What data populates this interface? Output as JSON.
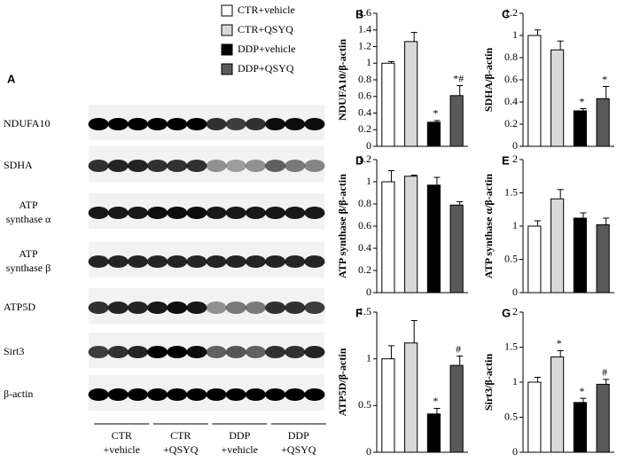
{
  "legend": {
    "series": [
      {
        "name": "CTR+vehicle",
        "color": "#ffffff"
      },
      {
        "name": "CTR+QSYQ",
        "color": "#d9d9d9"
      },
      {
        "name": "DDP+vehicle",
        "color": "#000000"
      },
      {
        "name": "DDP+QSYQ",
        "color": "#595959"
      }
    ]
  },
  "blot": {
    "label": "A",
    "rows": [
      [
        "NDUFA10"
      ],
      [
        "SDHA"
      ],
      [
        "ATP",
        "synthase α"
      ],
      [
        "ATP",
        "synthase β"
      ],
      [
        "ATP5D"
      ],
      [
        "Sirt3"
      ],
      [
        "β-actin"
      ]
    ],
    "groups": [
      [
        "CTR",
        "+vehicle"
      ],
      [
        "CTR",
        "+QSYQ"
      ],
      [
        "DDP",
        "+vehicle"
      ],
      [
        "DDP",
        "+QSYQ"
      ]
    ]
  },
  "chart_data": [
    {
      "type": "bar",
      "label": "B",
      "ylabel": "NDUFA10/β-actin",
      "values": [
        1.0,
        1.26,
        0.29,
        0.61
      ],
      "errors": [
        0.02,
        0.11,
        0.02,
        0.12
      ],
      "annotations": [
        null,
        null,
        "*",
        "*#"
      ],
      "ylim": [
        0,
        1.6
      ],
      "yticks": [
        0,
        0.2,
        0.4,
        0.6,
        0.8,
        1,
        1.2,
        1.4,
        1.6
      ]
    },
    {
      "type": "bar",
      "label": "C",
      "ylabel": "SDHA/β-actin",
      "values": [
        1.0,
        0.87,
        0.32,
        0.43
      ],
      "errors": [
        0.05,
        0.08,
        0.02,
        0.11
      ],
      "annotations": [
        null,
        null,
        "*",
        "*"
      ],
      "ylim": [
        0,
        1.2
      ],
      "yticks": [
        0,
        0.2,
        0.4,
        0.6,
        0.8,
        1,
        1.2
      ]
    },
    {
      "type": "bar",
      "label": "D",
      "ylabel": "ATP synthase β/β-actin",
      "values": [
        1.0,
        1.05,
        0.97,
        0.79
      ],
      "errors": [
        0.1,
        0.01,
        0.07,
        0.03
      ],
      "ylim": [
        0,
        1.2
      ],
      "yticks": [
        0,
        0.2,
        0.4,
        0.6,
        0.8,
        1,
        1.2
      ]
    },
    {
      "type": "bar",
      "label": "E",
      "ylabel": "ATP synthase α/β-actin",
      "values": [
        1.0,
        1.41,
        1.12,
        1.02
      ],
      "errors": [
        0.08,
        0.14,
        0.08,
        0.1
      ],
      "ylim": [
        0,
        2
      ],
      "yticks": [
        0,
        0.5,
        1,
        1.5,
        2
      ]
    },
    {
      "type": "bar",
      "label": "F",
      "ylabel": "ATP5D/β-actin",
      "values": [
        1.0,
        1.17,
        0.41,
        0.93
      ],
      "errors": [
        0.14,
        0.24,
        0.06,
        0.1
      ],
      "annotations": [
        null,
        null,
        "*",
        "#"
      ],
      "ylim": [
        0,
        1.5
      ],
      "yticks": [
        0,
        0.5,
        1,
        1.5
      ]
    },
    {
      "type": "bar",
      "label": "G",
      "ylabel": "Sirt3/β-actin",
      "values": [
        1.0,
        1.36,
        0.71,
        0.97
      ],
      "errors": [
        0.07,
        0.09,
        0.06,
        0.07
      ],
      "annotations": [
        null,
        "*",
        "*",
        "#"
      ],
      "ylim": [
        0,
        2
      ],
      "yticks": [
        0,
        0.5,
        1,
        1.5,
        2
      ]
    }
  ]
}
